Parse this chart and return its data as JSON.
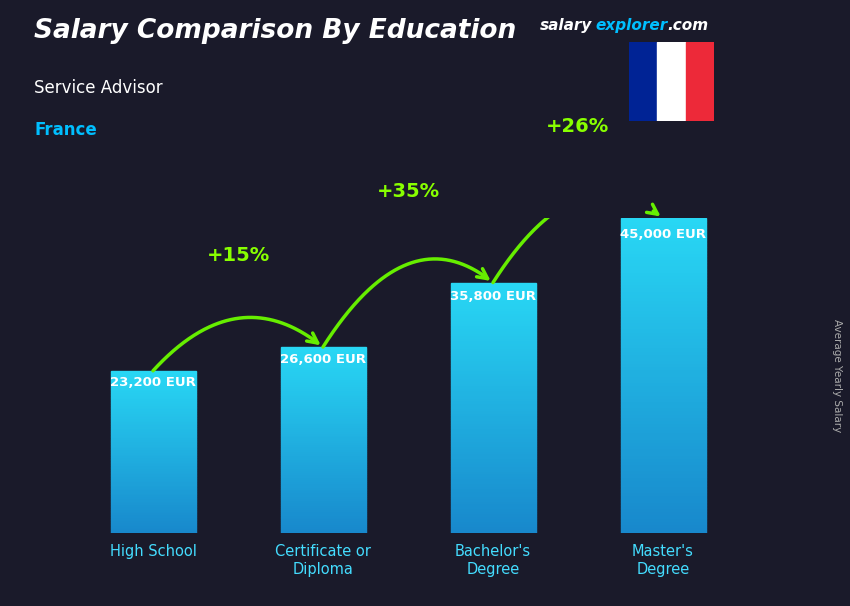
{
  "title": "Salary Comparison By Education",
  "subtitle": "Service Advisor",
  "country": "France",
  "ylabel": "Average Yearly Salary",
  "categories": [
    "High School",
    "Certificate or\nDiploma",
    "Bachelor's\nDegree",
    "Master's\nDegree"
  ],
  "values": [
    23200,
    26600,
    35800,
    45000
  ],
  "value_labels": [
    "23,200 EUR",
    "26,600 EUR",
    "35,800 EUR",
    "45,000 EUR"
  ],
  "pct_labels": [
    "+15%",
    "+35%",
    "+26%"
  ],
  "bar_color_top": "#29d8f5",
  "bar_color_bottom": "#1888cc",
  "background_color": "#1a1a2a",
  "title_color": "#ffffff",
  "subtitle_color": "#ffffff",
  "country_color": "#00bfff",
  "value_color": "#ffffff",
  "pct_color": "#88ff00",
  "arrow_color": "#66ee00",
  "xlabel_color": "#44ddff",
  "ylabel_color": "#aaaaaa",
  "brand_salary_color": "#ffffff",
  "brand_explorer_color": "#00bfff",
  "brand_com_color": "#ffffff",
  "flag_colors": [
    "#002395",
    "#ffffff",
    "#ED2939"
  ]
}
